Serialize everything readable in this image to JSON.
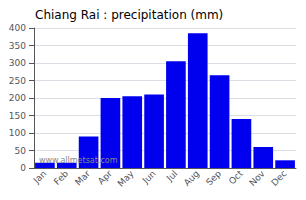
{
  "chart_data": {
    "type": "bar",
    "title": "Chiang Rai : precipitation (mm)",
    "categories": [
      "Jan",
      "Feb",
      "Mar",
      "Apr",
      "May",
      "Jun",
      "Jul",
      "Aug",
      "Sep",
      "Oct",
      "Nov",
      "Dec"
    ],
    "values": [
      15,
      15,
      90,
      200,
      205,
      210,
      305,
      385,
      265,
      140,
      60,
      22
    ],
    "color": "#0000ee",
    "ylim": [
      0,
      400
    ],
    "yticks": [
      0,
      50,
      100,
      150,
      200,
      250,
      300,
      350,
      400
    ],
    "grid": true,
    "annotations": [
      "www.allmetsat.com"
    ]
  }
}
